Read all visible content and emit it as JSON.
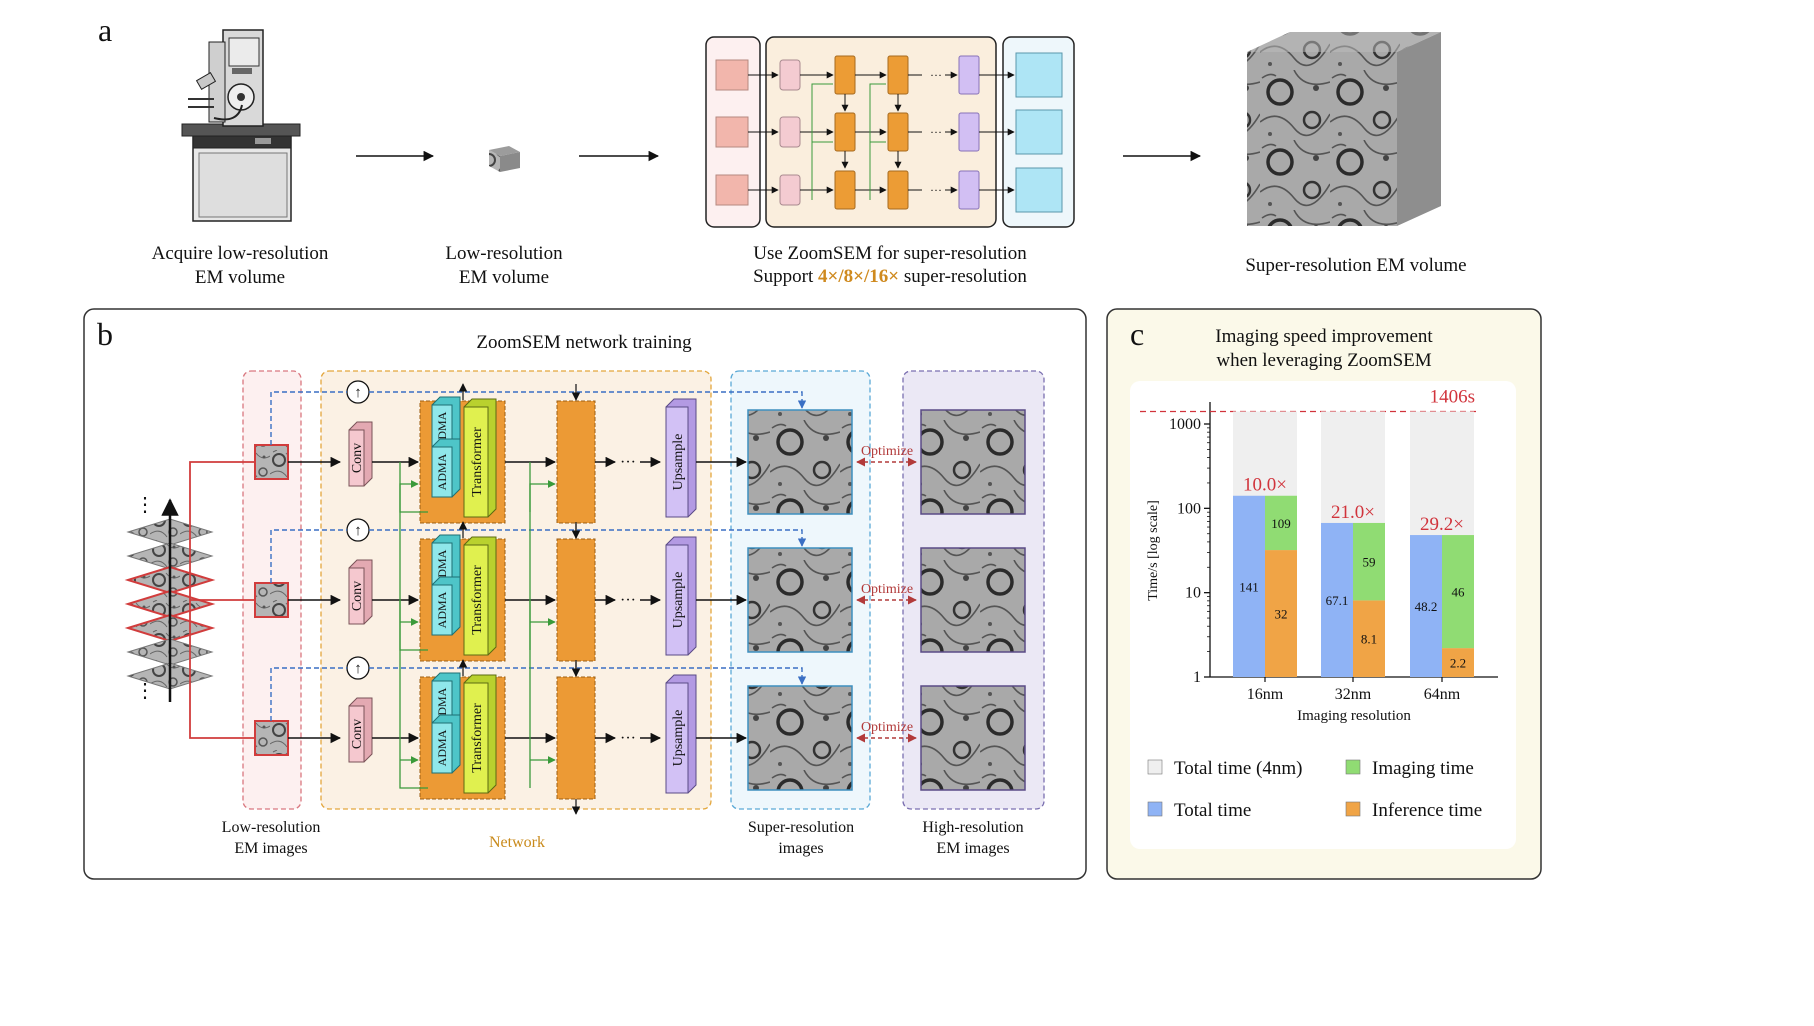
{
  "panel_a": {
    "letter": "a",
    "step1_line1": "Acquire low-resolution",
    "step1_line2": "EM volume",
    "step2_line1": "Low-resolution",
    "step2_line2": "EM volume",
    "step3_line1": "Use ZoomSEM for super-resolution",
    "step3_prefix": "Support ",
    "step3_highlight": "4×/8×/16×",
    "step3_suffix": " super-resolution",
    "step4": "Super-resolution EM volume",
    "dots": "···"
  },
  "panel_b": {
    "letter": "b",
    "title": "ZoomSEM network training",
    "conv": "Conv",
    "adma": "ADMA",
    "transformer": "Transformer",
    "upsample": "Upsample",
    "optimize": "Optimize",
    "dots": "···",
    "stack_dots": "⋮",
    "sum_symbol": "↑",
    "label_lr_line1": "Low-resolution",
    "label_lr_line2": "EM images",
    "label_network": "Network",
    "label_sr_line1": "Super-resolution",
    "label_sr_line2": "images",
    "label_hr_line1": "High-resolution",
    "label_hr_line2": "EM images"
  },
  "panel_c": {
    "letter": "c",
    "title_line1": "Imaging speed improvement",
    "title_line2": "when leveraging ZoomSEM",
    "reference_label": "1406s",
    "colors": {
      "total_4nm": "#efefef",
      "total": "#8fb3f5",
      "imaging": "#90dc73",
      "inference": "#f0a446",
      "accent": "#d1343c"
    },
    "legend": {
      "total_4nm": "Total time (4nm)",
      "imaging": "Imaging time",
      "total": "Total time",
      "inference": "Inference time"
    }
  },
  "chart_data": {
    "type": "bar",
    "xlabel": "Imaging resolution",
    "ylabel": "Time/s [log scale]",
    "scale": "log",
    "ylim": [
      1,
      1406
    ],
    "yticks": [
      "1",
      "10",
      "100",
      "1000"
    ],
    "reference_line": 1406,
    "categories": [
      "16nm",
      "32nm",
      "64nm"
    ],
    "series": [
      {
        "name": "Total time",
        "values": [
          141,
          67.1,
          48.2
        ]
      },
      {
        "name": "Imaging time",
        "values": [
          109,
          59,
          46
        ]
      },
      {
        "name": "Inference time",
        "values": [
          32,
          8.1,
          2.2
        ]
      }
    ],
    "speedups": [
      "10.0×",
      "21.0×",
      "29.2×"
    ],
    "grid": false
  }
}
